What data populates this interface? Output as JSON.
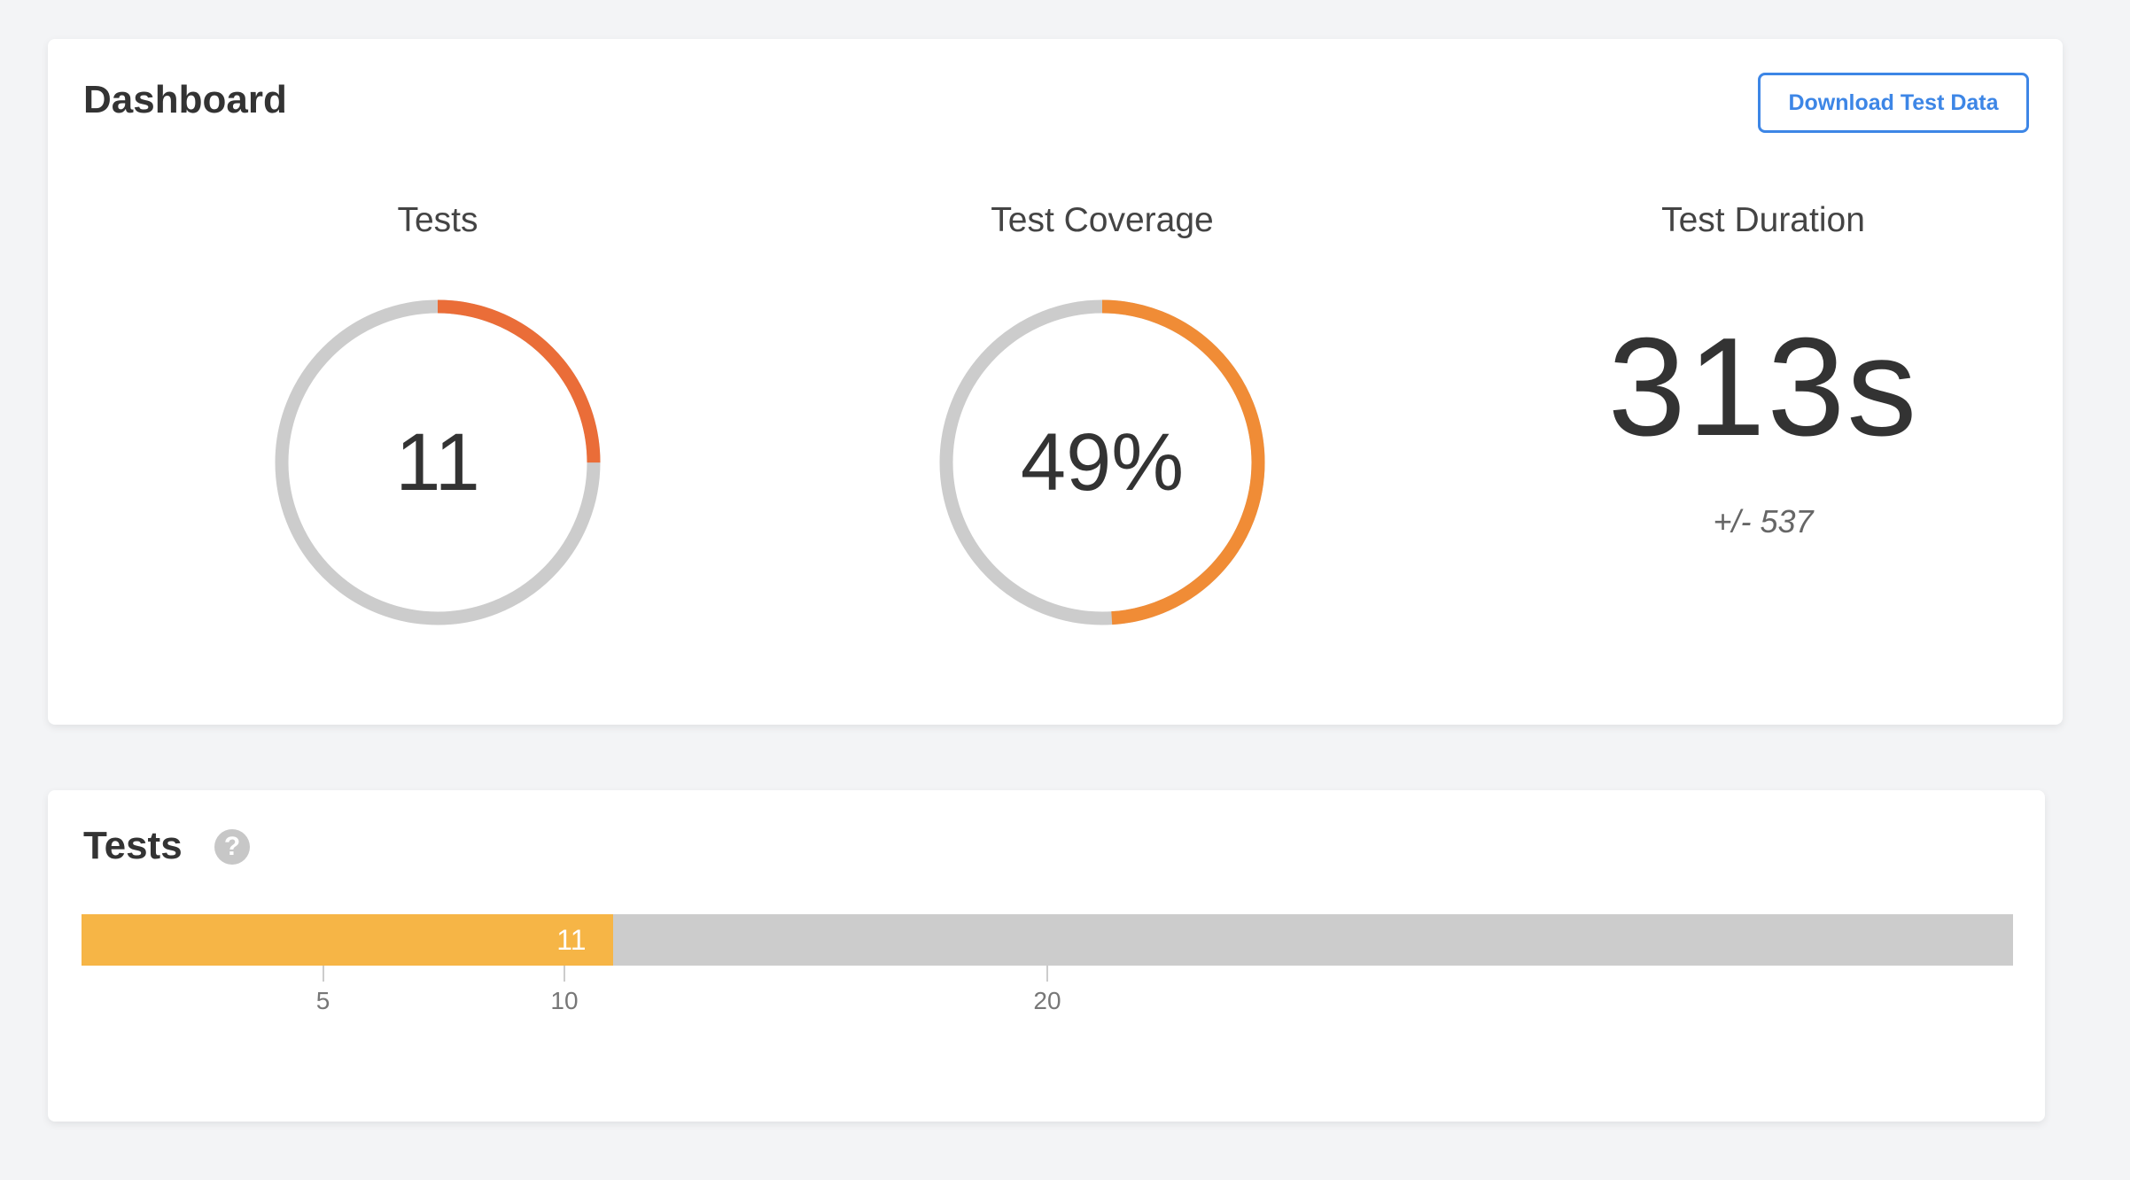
{
  "dashboard": {
    "title": "Dashboard",
    "download_label": "Download Test Data",
    "metrics": {
      "tests": {
        "label": "Tests",
        "value": "11",
        "progress": 0.25,
        "color": "#ea6d38"
      },
      "coverage": {
        "label": "Test Coverage",
        "value": "49%",
        "progress": 0.49,
        "color": "#f08c36"
      },
      "duration": {
        "label": "Test Duration",
        "value": "313s",
        "sub": "+/- 537"
      }
    },
    "track_color": "#cccccc"
  },
  "tests_panel": {
    "title": "Tests",
    "help_icon": "question-circle-icon",
    "bar": {
      "value": 11,
      "label": "11",
      "max": 40,
      "fill_color": "#f6b546",
      "ticks": [
        {
          "value": 5,
          "label": "5"
        },
        {
          "value": 10,
          "label": "10"
        },
        {
          "value": 20,
          "label": "20"
        }
      ]
    }
  }
}
